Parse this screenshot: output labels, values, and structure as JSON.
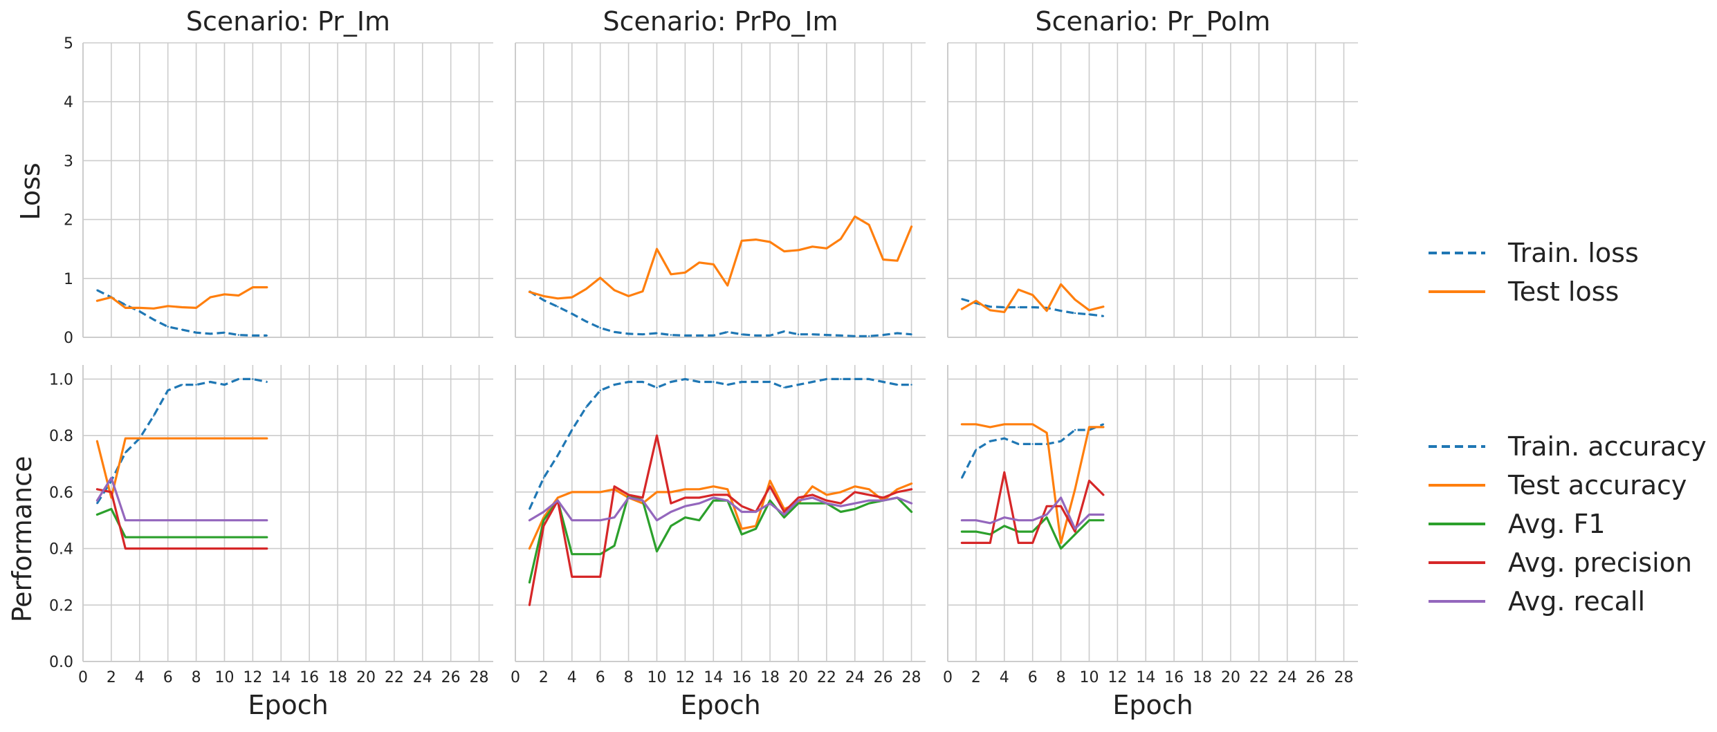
{
  "figure": {
    "row_labels": [
      "Loss",
      "Performance"
    ],
    "xlabel": "Epoch"
  },
  "colors": {
    "Train. loss": "#1f77b4",
    "Test loss": "#ff7f0e",
    "Train. accuracy": "#1f77b4",
    "Test accuracy": "#ff7f0e",
    "Avg. F1": "#2ca02c",
    "Avg. precision": "#d62728",
    "Avg. recall": "#9467bd"
  },
  "legends": [
    {
      "entries": [
        {
          "label": "Train. loss",
          "dashed": true
        },
        {
          "label": "Test loss",
          "dashed": false
        }
      ]
    },
    {
      "entries": [
        {
          "label": "Train. accuracy",
          "dashed": true
        },
        {
          "label": "Test accuracy",
          "dashed": false
        },
        {
          "label": "Avg. F1",
          "dashed": false
        },
        {
          "label": "Avg. precision",
          "dashed": false
        },
        {
          "label": "Avg. recall",
          "dashed": false
        }
      ]
    }
  ],
  "chart_data": [
    {
      "type": "line",
      "title": "Scenario: Pr_Im",
      "xlabel": "",
      "ylabel": "Loss",
      "xlim": [
        0,
        29
      ],
      "ylim": [
        0,
        5
      ],
      "grid": true,
      "xticks": [
        0,
        2,
        4,
        6,
        8,
        10,
        12,
        14,
        16,
        18,
        20,
        22,
        24,
        26,
        28
      ],
      "yticks": [
        0,
        1,
        2,
        3,
        4,
        5
      ],
      "series": [
        {
          "name": "Train. loss",
          "dashed": true,
          "x": [
            1,
            2,
            3,
            4,
            5,
            6,
            7,
            8,
            9,
            10,
            11,
            12,
            13
          ],
          "y": [
            0.8,
            0.68,
            0.55,
            0.44,
            0.3,
            0.18,
            0.13,
            0.08,
            0.06,
            0.08,
            0.04,
            0.03,
            0.03
          ]
        },
        {
          "name": "Test loss",
          "dashed": false,
          "x": [
            1,
            2,
            3,
            4,
            5,
            6,
            7,
            8,
            9,
            10,
            11,
            12,
            13
          ],
          "y": [
            0.62,
            0.68,
            0.5,
            0.5,
            0.49,
            0.53,
            0.51,
            0.5,
            0.68,
            0.73,
            0.71,
            0.85,
            0.85
          ]
        }
      ]
    },
    {
      "type": "line",
      "title": "Scenario: PrPo_Im",
      "xlabel": "",
      "ylabel": "",
      "xlim": [
        0,
        29
      ],
      "ylim": [
        0,
        5
      ],
      "grid": true,
      "xticks": [
        0,
        2,
        4,
        6,
        8,
        10,
        12,
        14,
        16,
        18,
        20,
        22,
        24,
        26,
        28
      ],
      "yticks": [
        0,
        1,
        2,
        3,
        4,
        5
      ],
      "series": [
        {
          "name": "Train. loss",
          "dashed": true,
          "x": [
            1,
            2,
            3,
            4,
            5,
            6,
            7,
            8,
            9,
            10,
            11,
            12,
            13,
            14,
            15,
            16,
            17,
            18,
            19,
            20,
            21,
            22,
            23,
            24,
            25,
            26,
            27,
            28
          ],
          "y": [
            0.78,
            0.63,
            0.52,
            0.4,
            0.27,
            0.16,
            0.09,
            0.06,
            0.05,
            0.07,
            0.04,
            0.03,
            0.03,
            0.03,
            0.09,
            0.05,
            0.03,
            0.03,
            0.1,
            0.05,
            0.05,
            0.04,
            0.03,
            0.02,
            0.02,
            0.04,
            0.07,
            0.05
          ]
        },
        {
          "name": "Test loss",
          "dashed": false,
          "x": [
            1,
            2,
            3,
            4,
            5,
            6,
            7,
            8,
            9,
            10,
            11,
            12,
            13,
            14,
            15,
            16,
            17,
            18,
            19,
            20,
            21,
            22,
            23,
            24,
            25,
            26,
            27,
            28
          ],
          "y": [
            0.77,
            0.7,
            0.66,
            0.68,
            0.82,
            1.01,
            0.8,
            0.7,
            0.78,
            1.5,
            1.07,
            1.1,
            1.27,
            1.24,
            0.88,
            1.64,
            1.66,
            1.62,
            1.46,
            1.48,
            1.54,
            1.51,
            1.67,
            2.05,
            1.91,
            1.32,
            1.3,
            1.88
          ]
        }
      ]
    },
    {
      "type": "line",
      "title": "Scenario: Pr_PoIm",
      "xlabel": "",
      "ylabel": "",
      "xlim": [
        0,
        29
      ],
      "ylim": [
        0,
        5
      ],
      "grid": true,
      "xticks": [
        0,
        2,
        4,
        6,
        8,
        10,
        12,
        14,
        16,
        18,
        20,
        22,
        24,
        26,
        28
      ],
      "yticks": [
        0,
        1,
        2,
        3,
        4,
        5
      ],
      "series": [
        {
          "name": "Train. loss",
          "dashed": true,
          "x": [
            1,
            2,
            3,
            4,
            5,
            6,
            7,
            8,
            9,
            10,
            11
          ],
          "y": [
            0.65,
            0.58,
            0.52,
            0.51,
            0.51,
            0.51,
            0.5,
            0.45,
            0.41,
            0.39,
            0.36
          ]
        },
        {
          "name": "Test loss",
          "dashed": false,
          "x": [
            1,
            2,
            3,
            4,
            5,
            6,
            7,
            8,
            9,
            10,
            11
          ],
          "y": [
            0.48,
            0.62,
            0.46,
            0.43,
            0.81,
            0.72,
            0.45,
            0.9,
            0.64,
            0.46,
            0.52
          ]
        }
      ]
    },
    {
      "type": "line",
      "title": "",
      "xlabel": "Epoch",
      "ylabel": "Performance",
      "xlim": [
        0,
        29
      ],
      "ylim": [
        0,
        1.05
      ],
      "grid": true,
      "xticks": [
        0,
        2,
        4,
        6,
        8,
        10,
        12,
        14,
        16,
        18,
        20,
        22,
        24,
        26,
        28
      ],
      "yticks": [
        0.0,
        0.2,
        0.4,
        0.6,
        0.8,
        1.0
      ],
      "series": [
        {
          "name": "Train. accuracy",
          "dashed": true,
          "x": [
            1,
            2,
            3,
            4,
            5,
            6,
            7,
            8,
            9,
            10,
            11,
            12,
            13
          ],
          "y": [
            0.56,
            0.64,
            0.74,
            0.79,
            0.87,
            0.96,
            0.98,
            0.98,
            0.99,
            0.98,
            1.0,
            1.0,
            0.99
          ]
        },
        {
          "name": "Test accuracy",
          "dashed": false,
          "x": [
            1,
            2,
            3,
            4,
            5,
            6,
            7,
            8,
            9,
            10,
            11,
            12,
            13
          ],
          "y": [
            0.78,
            0.58,
            0.79,
            0.79,
            0.79,
            0.79,
            0.79,
            0.79,
            0.79,
            0.79,
            0.79,
            0.79,
            0.79
          ]
        },
        {
          "name": "Avg. F1",
          "dashed": false,
          "x": [
            1,
            2,
            3,
            4,
            5,
            6,
            7,
            8,
            9,
            10,
            11,
            12,
            13
          ],
          "y": [
            0.52,
            0.54,
            0.44,
            0.44,
            0.44,
            0.44,
            0.44,
            0.44,
            0.44,
            0.44,
            0.44,
            0.44,
            0.44
          ]
        },
        {
          "name": "Avg. precision",
          "dashed": false,
          "x": [
            1,
            2,
            3,
            4,
            5,
            6,
            7,
            8,
            9,
            10,
            11,
            12,
            13
          ],
          "y": [
            0.61,
            0.6,
            0.4,
            0.4,
            0.4,
            0.4,
            0.4,
            0.4,
            0.4,
            0.4,
            0.4,
            0.4,
            0.4
          ]
        },
        {
          "name": "Avg. recall",
          "dashed": false,
          "x": [
            1,
            2,
            3,
            4,
            5,
            6,
            7,
            8,
            9,
            10,
            11,
            12,
            13
          ],
          "y": [
            0.57,
            0.65,
            0.5,
            0.5,
            0.5,
            0.5,
            0.5,
            0.5,
            0.5,
            0.5,
            0.5,
            0.5,
            0.5
          ]
        }
      ]
    },
    {
      "type": "line",
      "title": "",
      "xlabel": "Epoch",
      "ylabel": "",
      "xlim": [
        0,
        29
      ],
      "ylim": [
        0,
        1.05
      ],
      "grid": true,
      "xticks": [
        0,
        2,
        4,
        6,
        8,
        10,
        12,
        14,
        16,
        18,
        20,
        22,
        24,
        26,
        28
      ],
      "yticks": [
        0.0,
        0.2,
        0.4,
        0.6,
        0.8,
        1.0
      ],
      "series": [
        {
          "name": "Train. accuracy",
          "dashed": true,
          "x": [
            1,
            2,
            3,
            4,
            5,
            6,
            7,
            8,
            9,
            10,
            11,
            12,
            13,
            14,
            15,
            16,
            17,
            18,
            19,
            20,
            21,
            22,
            23,
            24,
            25,
            26,
            27,
            28
          ],
          "y": [
            0.54,
            0.65,
            0.73,
            0.82,
            0.9,
            0.96,
            0.98,
            0.99,
            0.99,
            0.97,
            0.99,
            1.0,
            0.99,
            0.99,
            0.98,
            0.99,
            0.99,
            0.99,
            0.97,
            0.98,
            0.99,
            1.0,
            1.0,
            1.0,
            1.0,
            0.99,
            0.98,
            0.98
          ]
        },
        {
          "name": "Test accuracy",
          "dashed": false,
          "x": [
            1,
            2,
            3,
            4,
            5,
            6,
            7,
            8,
            9,
            10,
            11,
            12,
            13,
            14,
            15,
            16,
            17,
            18,
            19,
            20,
            21,
            22,
            23,
            24,
            25,
            26,
            27,
            28
          ],
          "y": [
            0.4,
            0.51,
            0.58,
            0.6,
            0.6,
            0.6,
            0.61,
            0.58,
            0.56,
            0.6,
            0.6,
            0.61,
            0.61,
            0.62,
            0.61,
            0.47,
            0.48,
            0.64,
            0.54,
            0.56,
            0.62,
            0.59,
            0.6,
            0.62,
            0.61,
            0.57,
            0.61,
            0.63
          ]
        },
        {
          "name": "Avg. F1",
          "dashed": false,
          "x": [
            1,
            2,
            3,
            4,
            5,
            6,
            7,
            8,
            9,
            10,
            11,
            12,
            13,
            14,
            15,
            16,
            17,
            18,
            19,
            20,
            21,
            22,
            23,
            24,
            25,
            26,
            27,
            28
          ],
          "y": [
            0.28,
            0.5,
            0.57,
            0.38,
            0.38,
            0.38,
            0.41,
            0.59,
            0.57,
            0.39,
            0.48,
            0.51,
            0.5,
            0.57,
            0.57,
            0.45,
            0.47,
            0.57,
            0.51,
            0.56,
            0.56,
            0.56,
            0.53,
            0.54,
            0.56,
            0.57,
            0.58,
            0.53
          ]
        },
        {
          "name": "Avg. precision",
          "dashed": false,
          "x": [
            1,
            2,
            3,
            4,
            5,
            6,
            7,
            8,
            9,
            10,
            11,
            12,
            13,
            14,
            15,
            16,
            17,
            18,
            19,
            20,
            21,
            22,
            23,
            24,
            25,
            26,
            27,
            28
          ],
          "y": [
            0.2,
            0.48,
            0.57,
            0.3,
            0.3,
            0.3,
            0.62,
            0.59,
            0.58,
            0.8,
            0.56,
            0.58,
            0.58,
            0.59,
            0.59,
            0.55,
            0.53,
            0.62,
            0.53,
            0.58,
            0.59,
            0.57,
            0.56,
            0.6,
            0.59,
            0.58,
            0.6,
            0.61
          ]
        },
        {
          "name": "Avg. recall",
          "dashed": false,
          "x": [
            1,
            2,
            3,
            4,
            5,
            6,
            7,
            8,
            9,
            10,
            11,
            12,
            13,
            14,
            15,
            16,
            17,
            18,
            19,
            20,
            21,
            22,
            23,
            24,
            25,
            26,
            27,
            28
          ],
          "y": [
            0.5,
            0.53,
            0.57,
            0.5,
            0.5,
            0.5,
            0.51,
            0.58,
            0.57,
            0.5,
            0.53,
            0.55,
            0.56,
            0.58,
            0.57,
            0.53,
            0.53,
            0.56,
            0.52,
            0.57,
            0.58,
            0.56,
            0.55,
            0.56,
            0.57,
            0.57,
            0.58,
            0.56
          ]
        }
      ]
    },
    {
      "type": "line",
      "title": "",
      "xlabel": "Epoch",
      "ylabel": "",
      "xlim": [
        0,
        29
      ],
      "ylim": [
        0,
        1.05
      ],
      "grid": true,
      "xticks": [
        0,
        2,
        4,
        6,
        8,
        10,
        12,
        14,
        16,
        18,
        20,
        22,
        24,
        26,
        28
      ],
      "yticks": [
        0.0,
        0.2,
        0.4,
        0.6,
        0.8,
        1.0
      ],
      "series": [
        {
          "name": "Train. accuracy",
          "dashed": true,
          "x": [
            1,
            2,
            3,
            4,
            5,
            6,
            7,
            8,
            9,
            10,
            11
          ],
          "y": [
            0.65,
            0.75,
            0.78,
            0.79,
            0.77,
            0.77,
            0.77,
            0.78,
            0.82,
            0.82,
            0.84
          ]
        },
        {
          "name": "Test accuracy",
          "dashed": false,
          "x": [
            1,
            2,
            3,
            4,
            5,
            6,
            7,
            8,
            9,
            10,
            11
          ],
          "y": [
            0.84,
            0.84,
            0.83,
            0.84,
            0.84,
            0.84,
            0.81,
            0.42,
            0.61,
            0.83,
            0.83
          ]
        },
        {
          "name": "Avg. F1",
          "dashed": false,
          "x": [
            1,
            2,
            3,
            4,
            5,
            6,
            7,
            8,
            9,
            10,
            11
          ],
          "y": [
            0.46,
            0.46,
            0.45,
            0.48,
            0.46,
            0.46,
            0.51,
            0.4,
            0.45,
            0.5,
            0.5
          ]
        },
        {
          "name": "Avg. precision",
          "dashed": false,
          "x": [
            1,
            2,
            3,
            4,
            5,
            6,
            7,
            8,
            9,
            10,
            11
          ],
          "y": [
            0.42,
            0.42,
            0.42,
            0.67,
            0.42,
            0.42,
            0.55,
            0.55,
            0.46,
            0.64,
            0.59
          ]
        },
        {
          "name": "Avg. recall",
          "dashed": false,
          "x": [
            1,
            2,
            3,
            4,
            5,
            6,
            7,
            8,
            9,
            10,
            11
          ],
          "y": [
            0.5,
            0.5,
            0.49,
            0.51,
            0.5,
            0.5,
            0.52,
            0.58,
            0.47,
            0.52,
            0.52
          ]
        }
      ]
    }
  ]
}
